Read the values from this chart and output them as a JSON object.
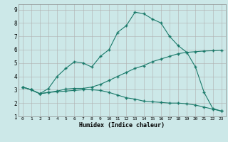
{
  "xlabel": "Humidex (Indice chaleur)",
  "bg_color": "#cce8e8",
  "grid_color": "#b0b0b0",
  "line_color": "#1a7a6a",
  "xlim": [
    -0.5,
    23.5
  ],
  "ylim": [
    1,
    9.4
  ],
  "xticks": [
    0,
    1,
    2,
    3,
    4,
    5,
    6,
    7,
    8,
    9,
    10,
    11,
    12,
    13,
    14,
    15,
    16,
    17,
    18,
    19,
    20,
    21,
    22,
    23
  ],
  "yticks": [
    1,
    2,
    3,
    4,
    5,
    6,
    7,
    8,
    9
  ],
  "line_main_x": [
    0,
    1,
    2,
    3,
    4,
    5,
    6,
    7,
    8,
    9,
    10,
    11,
    12,
    13,
    14,
    15,
    16,
    17,
    18,
    19,
    20,
    21,
    22,
    23
  ],
  "line_main_y": [
    3.2,
    3.0,
    2.7,
    3.1,
    4.0,
    4.6,
    5.1,
    5.0,
    4.7,
    5.5,
    6.0,
    7.3,
    7.8,
    8.8,
    8.7,
    8.3,
    8.0,
    7.0,
    6.3,
    5.8,
    4.7,
    2.8,
    1.6,
    1.4
  ],
  "line_rising_x": [
    0,
    1,
    2,
    3,
    4,
    5,
    6,
    7,
    8,
    9,
    10,
    11,
    12,
    13,
    14,
    15,
    16,
    17,
    18,
    19,
    20,
    21,
    22,
    23
  ],
  "line_rising_y": [
    3.2,
    3.0,
    2.7,
    2.8,
    2.9,
    3.05,
    3.1,
    3.1,
    3.2,
    3.4,
    3.7,
    4.0,
    4.3,
    4.6,
    4.8,
    5.1,
    5.3,
    5.5,
    5.7,
    5.8,
    5.85,
    5.9,
    5.92,
    5.95
  ],
  "line_falling_x": [
    0,
    1,
    2,
    3,
    4,
    5,
    6,
    7,
    8,
    9,
    10,
    11,
    12,
    13,
    14,
    15,
    16,
    17,
    18,
    19,
    20,
    21,
    22,
    23
  ],
  "line_falling_y": [
    3.2,
    3.0,
    2.7,
    2.8,
    2.85,
    2.9,
    2.95,
    3.0,
    3.0,
    2.95,
    2.8,
    2.6,
    2.4,
    2.3,
    2.15,
    2.1,
    2.05,
    2.0,
    2.0,
    1.95,
    1.85,
    1.7,
    1.55,
    1.4
  ]
}
